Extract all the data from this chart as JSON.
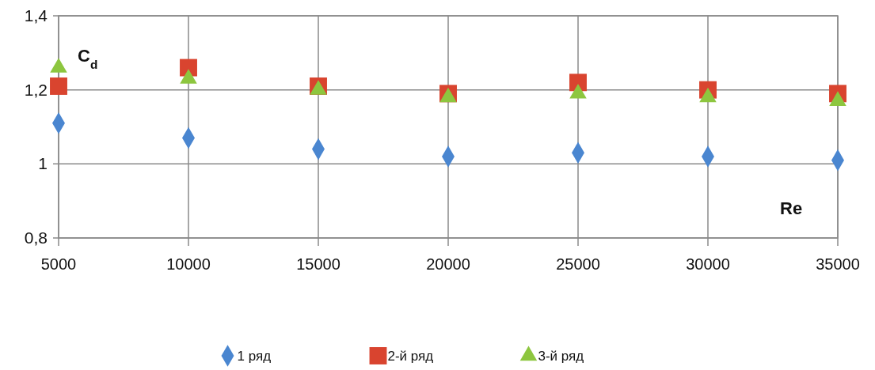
{
  "chart_data": {
    "type": "scatter",
    "xlabel": "Re",
    "ylabel": "C$_{d}$",
    "x": [
      5000,
      10000,
      15000,
      20000,
      25000,
      30000,
      35000
    ],
    "xlim": [
      5000,
      35000
    ],
    "xticks": [
      5000,
      10000,
      15000,
      20000,
      25000,
      30000,
      35000
    ],
    "ylim": [
      0.8,
      1.4
    ],
    "yticks": [
      {
        "value": 0.8,
        "label": "0,8"
      },
      1,
      {
        "value": 1.2,
        "label": "1,2"
      },
      {
        "value": 1.4,
        "label": "1,4"
      }
    ],
    "grid": true,
    "legend": "bottom",
    "series": [
      {
        "name": "1 ряд",
        "color": "#4a86d0",
        "marker": "diamond",
        "values": [
          1.11,
          1.07,
          1.04,
          1.02,
          1.03,
          1.02,
          1.01
        ]
      },
      {
        "name": "2-й ряд",
        "color": "#d9442f",
        "marker": "square",
        "values": [
          1.21,
          1.26,
          1.21,
          1.19,
          1.22,
          1.2,
          1.19
        ]
      },
      {
        "name": "3-й ряд",
        "color": "#8dc63f",
        "marker": "triangle",
        "values": [
          1.26,
          1.23,
          1.2,
          1.18,
          1.19,
          1.18,
          1.17
        ]
      }
    ]
  }
}
